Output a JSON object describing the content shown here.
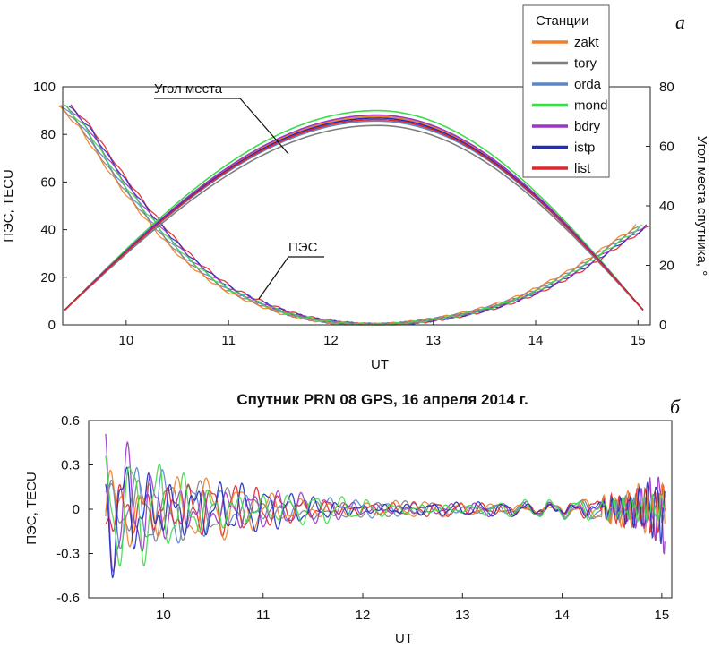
{
  "chart_data": [
    {
      "type": "line",
      "panel_letter": "а",
      "title": "",
      "xlabel": "UT",
      "ylabel": "ПЭС, TECU",
      "y2label": "Угол места спутника, °",
      "xlim": [
        9.38,
        15.12
      ],
      "ylim": [
        0,
        100
      ],
      "y2lim": [
        0,
        80
      ],
      "xticks": [
        10,
        11,
        12,
        13,
        14,
        15
      ],
      "yticks": [
        0,
        20,
        40,
        60,
        80,
        100
      ],
      "y2ticks": [
        0,
        20,
        40,
        60,
        80
      ],
      "legend": {
        "title": "Станции",
        "position": "top-right",
        "entries": [
          {
            "name": "zakt",
            "color": "#f07f2a"
          },
          {
            "name": "tory",
            "color": "#7f7f7f"
          },
          {
            "name": "orda",
            "color": "#5b86c8"
          },
          {
            "name": "mond",
            "color": "#3ddc4a"
          },
          {
            "name": "bdry",
            "color": "#9b35c4"
          },
          {
            "name": "istp",
            "color": "#1f2fbd"
          },
          {
            "name": "list",
            "color": "#e0242b"
          }
        ]
      },
      "annotations": [
        "Угол места",
        "ПЭС"
      ],
      "tec_curve": {
        "x": [
          9.4,
          9.6,
          9.8,
          10.0,
          10.2,
          10.4,
          10.6,
          10.8,
          11.0,
          11.2,
          11.4,
          11.6,
          11.8,
          12.0,
          12.2,
          12.4,
          12.6,
          12.8,
          13.0,
          13.2,
          13.4,
          13.6,
          13.8,
          14.0,
          14.2,
          14.4,
          14.6,
          14.8,
          15.0,
          15.05
        ],
        "y": [
          92,
          83,
          70,
          58,
          47,
          37,
          28,
          21,
          15,
          11,
          7.5,
          4.5,
          2.5,
          1.2,
          0.4,
          0.1,
          0.3,
          1.0,
          2.2,
          3.6,
          5.4,
          7.7,
          10.5,
          14,
          18.3,
          23,
          28.5,
          34.5,
          40,
          42
        ]
      },
      "elevation_series": [
        {
          "station": "zakt",
          "x": [
            9.4,
            12.45,
            15.05
          ],
          "y": [
            5,
            70,
            5
          ]
        },
        {
          "station": "tory",
          "x": [
            9.4,
            12.45,
            15.05
          ],
          "y": [
            5,
            67,
            5
          ]
        },
        {
          "station": "orda",
          "x": [
            9.4,
            12.45,
            15.05
          ],
          "y": [
            5,
            68.5,
            5
          ]
        },
        {
          "station": "mond",
          "x": [
            9.4,
            12.45,
            15.05
          ],
          "y": [
            5,
            72,
            5
          ]
        },
        {
          "station": "bdry",
          "x": [
            9.4,
            12.45,
            15.05
          ],
          "y": [
            5,
            70.5,
            5
          ]
        },
        {
          "station": "istp",
          "x": [
            9.4,
            12.45,
            15.05
          ],
          "y": [
            5,
            69.5,
            5
          ]
        },
        {
          "station": "list",
          "x": [
            9.4,
            12.45,
            15.05
          ],
          "y": [
            5,
            69,
            5
          ]
        }
      ]
    },
    {
      "type": "line",
      "panel_letter": "б",
      "title": "Спутник PRN 08 GPS, 16 апреля 2014 г.",
      "xlabel": "UT",
      "ylabel": "ПЭС, TECU",
      "xlim": [
        9.25,
        15.1
      ],
      "ylim": [
        -0.6,
        0.6
      ],
      "xticks": [
        10,
        11,
        12,
        13,
        14,
        15
      ],
      "yticks": [
        -0.6,
        -0.3,
        0,
        0.3,
        0.6
      ],
      "series": [
        {
          "name": "zakt",
          "color": "#f07f2a",
          "amplitude_envelope": [
            [
              9.4,
              0.5
            ],
            [
              10.0,
              0.25
            ],
            [
              11.0,
              0.12
            ],
            [
              12.0,
              0.06
            ],
            [
              13.0,
              0.04
            ],
            [
              14.0,
              0.05
            ],
            [
              14.6,
              0.1
            ],
            [
              15.0,
              0.2
            ]
          ]
        },
        {
          "name": "tory",
          "color": "#7f7f7f",
          "amplitude_envelope": [
            [
              9.4,
              0.3
            ],
            [
              10.0,
              0.2
            ],
            [
              11.0,
              0.1
            ],
            [
              12.0,
              0.05
            ],
            [
              13.0,
              0.04
            ],
            [
              14.0,
              0.05
            ],
            [
              14.6,
              0.08
            ],
            [
              15.0,
              0.15
            ]
          ]
        },
        {
          "name": "orda",
          "color": "#5b86c8",
          "amplitude_envelope": [
            [
              9.4,
              0.3
            ],
            [
              10.0,
              0.22
            ],
            [
              11.0,
              0.12
            ],
            [
              12.0,
              0.05
            ],
            [
              13.0,
              0.04
            ],
            [
              14.0,
              0.05
            ],
            [
              14.6,
              0.08
            ],
            [
              15.0,
              0.15
            ]
          ]
        },
        {
          "name": "mond",
          "color": "#3ddc4a",
          "amplitude_envelope": [
            [
              9.4,
              0.35
            ],
            [
              10.0,
              0.3
            ],
            [
              11.0,
              0.12
            ],
            [
              12.0,
              0.06
            ],
            [
              13.0,
              0.04
            ],
            [
              14.0,
              0.06
            ],
            [
              14.6,
              0.12
            ],
            [
              15.0,
              0.15
            ]
          ]
        },
        {
          "name": "bdry",
          "color": "#9b35c4",
          "amplitude_envelope": [
            [
              9.4,
              0.5
            ],
            [
              10.0,
              0.25
            ],
            [
              11.0,
              0.12
            ],
            [
              12.0,
              0.05
            ],
            [
              13.0,
              0.04
            ],
            [
              14.0,
              0.05
            ],
            [
              14.6,
              0.1
            ],
            [
              15.0,
              0.3
            ]
          ]
        },
        {
          "name": "istp",
          "color": "#1f2fbd",
          "amplitude_envelope": [
            [
              9.4,
              0.5
            ],
            [
              10.0,
              0.3
            ],
            [
              11.0,
              0.12
            ],
            [
              12.0,
              0.05
            ],
            [
              13.0,
              0.04
            ],
            [
              14.0,
              0.05
            ],
            [
              14.6,
              0.1
            ],
            [
              15.0,
              0.2
            ]
          ]
        },
        {
          "name": "list",
          "color": "#e0242b",
          "amplitude_envelope": [
            [
              9.4,
              0.3
            ],
            [
              10.0,
              0.2
            ],
            [
              11.0,
              0.12
            ],
            [
              12.0,
              0.05
            ],
            [
              13.0,
              0.04
            ],
            [
              14.0,
              0.05
            ],
            [
              14.6,
              0.1
            ],
            [
              15.0,
              0.15
            ]
          ]
        }
      ]
    }
  ]
}
